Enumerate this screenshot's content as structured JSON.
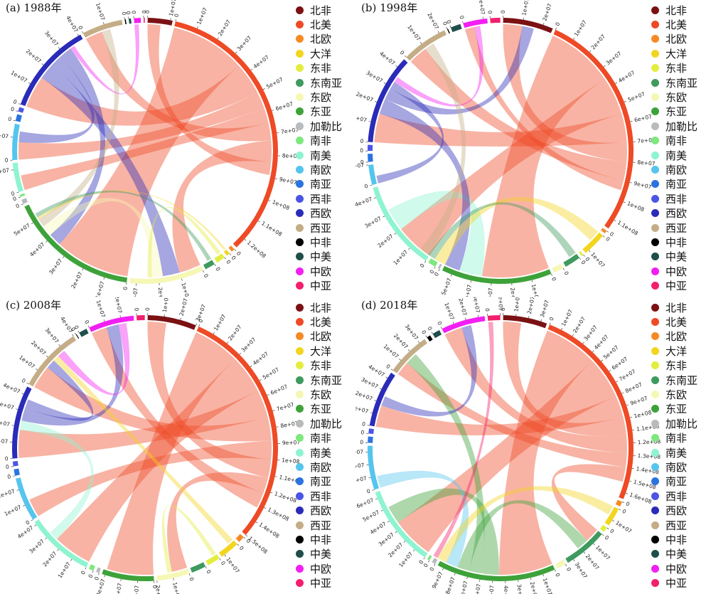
{
  "regions": [
    {
      "name": "北非",
      "color": "#7b1113"
    },
    {
      "name": "北美",
      "color": "#ee4a26"
    },
    {
      "name": "北欧",
      "color": "#f58a25"
    },
    {
      "name": "大洋",
      "color": "#f2d51f"
    },
    {
      "name": "东非",
      "color": "#e3ed3e"
    },
    {
      "name": "东南亚",
      "color": "#3e9a5e"
    },
    {
      "name": "东欧",
      "color": "#f5f7b4"
    },
    {
      "name": "东亚",
      "color": "#3ea23a"
    },
    {
      "name": "加勒比",
      "color": "#b7bbbd"
    },
    {
      "name": "南非",
      "color": "#7de87d"
    },
    {
      "name": "南美",
      "color": "#8ef4d0"
    },
    {
      "name": "南欧",
      "color": "#55c5ee"
    },
    {
      "name": "南亚",
      "color": "#2a73e0"
    },
    {
      "name": "西非",
      "color": "#4b55e4"
    },
    {
      "name": "西欧",
      "color": "#2a2bb8"
    },
    {
      "name": "西亚",
      "color": "#c4ad86"
    },
    {
      "name": "中非",
      "color": "#000000"
    },
    {
      "name": "中美",
      "color": "#1f4f4a"
    },
    {
      "name": "中欧",
      "color": "#f21ff2"
    },
    {
      "name": "中亚",
      "color": "#f21f6e"
    }
  ],
  "chart_data": [
    {
      "type": "chord",
      "title": "(a) 1988年",
      "sectors": [
        {
          "region": "北非",
          "total": 11000000.0
        },
        {
          "region": "北美",
          "total": 125000000.0
        },
        {
          "region": "北欧",
          "total": 1500000.0
        },
        {
          "region": "大洋",
          "total": 1500000.0
        },
        {
          "region": "东非",
          "total": 4000000.0
        },
        {
          "region": "东南亚",
          "total": 4500000.0
        },
        {
          "region": "东欧",
          "total": 33000000.0
        },
        {
          "region": "东亚",
          "total": 58000000.0
        },
        {
          "region": "加勒比",
          "total": 2000000.0
        },
        {
          "region": "南非",
          "total": 1000000.0
        },
        {
          "region": "南美",
          "total": 13000000.0
        },
        {
          "region": "南欧",
          "total": 16000000.0
        },
        {
          "region": "南亚",
          "total": 3000000.0
        },
        {
          "region": "西非",
          "total": 2000000.0
        },
        {
          "region": "西欧",
          "total": 41000000.0
        },
        {
          "region": "西亚",
          "total": 18000000.0
        },
        {
          "region": "中非",
          "total": 500000.0
        },
        {
          "region": "中美",
          "total": 1000000.0
        },
        {
          "region": "中欧",
          "total": 3000000.0
        },
        {
          "region": "中亚",
          "total": 500000.0
        }
      ],
      "flows": [
        {
          "from": "北美",
          "to": "东亚",
          "value": 35000000.0
        },
        {
          "from": "北美",
          "to": "西欧",
          "value": 15000000.0
        },
        {
          "from": "北美",
          "to": "南欧",
          "value": 8000000.0
        },
        {
          "from": "北美",
          "to": "南美",
          "value": 7000000.0
        },
        {
          "from": "北美",
          "to": "西亚",
          "value": 8000000.0
        },
        {
          "from": "北美",
          "to": "东欧",
          "value": 10000000.0
        },
        {
          "from": "北美",
          "to": "北非",
          "value": 6000000.0
        },
        {
          "from": "西欧",
          "to": "东欧",
          "value": 8000000.0
        },
        {
          "from": "西欧",
          "to": "南欧",
          "value": 5000000.0
        },
        {
          "from": "西欧",
          "to": "东亚",
          "value": 6000000.0
        },
        {
          "from": "东欧",
          "to": "东亚",
          "value": 5000000.0
        },
        {
          "from": "西亚",
          "to": "东亚",
          "value": 4000000.0
        },
        {
          "from": "大洋",
          "to": "东亚",
          "value": 1000000.0
        },
        {
          "from": "东南亚",
          "to": "东亚",
          "value": 2000000.0
        },
        {
          "from": "中欧",
          "to": "西欧",
          "value": 2000000.0
        },
        {
          "from": "东非",
          "to": "东欧",
          "value": 2000000.0
        }
      ]
    },
    {
      "type": "chord",
      "title": "(b) 1998年",
      "sectors": [
        {
          "region": "北非",
          "total": 25000000.0
        },
        {
          "region": "北美",
          "total": 115000000.0
        },
        {
          "region": "北欧",
          "total": 1500000.0
        },
        {
          "region": "大洋",
          "total": 12000000.0
        },
        {
          "region": "东非",
          "total": 1000000.0
        },
        {
          "region": "东南亚",
          "total": 8000000.0
        },
        {
          "region": "东欧",
          "total": 5000000.0
        },
        {
          "region": "东亚",
          "total": 55000000.0
        },
        {
          "region": "加勒比",
          "total": 1000000.0
        },
        {
          "region": "南非",
          "total": 4000000.0
        },
        {
          "region": "南美",
          "total": 45000000.0
        },
        {
          "region": "南欧",
          "total": 10000000.0
        },
        {
          "region": "南亚",
          "total": 4000000.0
        },
        {
          "region": "西非",
          "total": 3000000.0
        },
        {
          "region": "西欧",
          "total": 45000000.0
        },
        {
          "region": "西亚",
          "total": 23000000.0
        },
        {
          "region": "中非",
          "total": 500000.0
        },
        {
          "region": "中美",
          "total": 5000000.0
        },
        {
          "region": "中欧",
          "total": 12000000.0
        },
        {
          "region": "中亚",
          "total": 5000000.0
        }
      ],
      "flows": [
        {
          "from": "北美",
          "to": "东亚",
          "value": 35000000.0
        },
        {
          "from": "北美",
          "to": "南美",
          "value": 20000000.0
        },
        {
          "from": "北美",
          "to": "西欧",
          "value": 15000000.0
        },
        {
          "from": "北美",
          "to": "北非",
          "value": 10000000.0
        },
        {
          "from": "北美",
          "to": "西亚",
          "value": 10000000.0
        },
        {
          "from": "北美",
          "to": "中欧",
          "value": 5000000.0
        },
        {
          "from": "南美",
          "to": "东亚",
          "value": 12000000.0
        },
        {
          "from": "西欧",
          "to": "东亚",
          "value": 8000000.0
        },
        {
          "from": "西欧",
          "to": "北非",
          "value": 6000000.0
        },
        {
          "from": "西欧",
          "to": "南欧",
          "value": 4000000.0
        },
        {
          "from": "大洋",
          "to": "东亚",
          "value": 6000000.0
        },
        {
          "from": "东南亚",
          "to": "东亚",
          "value": 4000000.0
        },
        {
          "from": "中欧",
          "to": "西欧",
          "value": 3000000.0
        },
        {
          "from": "西亚",
          "to": "东亚",
          "value": 5000000.0
        }
      ]
    },
    {
      "type": "chord",
      "title": "(c) 2008年",
      "sectors": [
        {
          "region": "北非",
          "total": 30000000.0
        },
        {
          "region": "北美",
          "total": 150000000.0
        },
        {
          "region": "北欧",
          "total": 4000000.0
        },
        {
          "region": "大洋",
          "total": 12000000.0
        },
        {
          "region": "东非",
          "total": 8000000.0
        },
        {
          "region": "东南亚",
          "total": 9000000.0
        },
        {
          "region": "东欧",
          "total": 20000000.0
        },
        {
          "region": "东亚",
          "total": 32000000.0
        },
        {
          "region": "加勒比",
          "total": 2000000.0
        },
        {
          "region": "南非",
          "total": 3000000.0
        },
        {
          "region": "南美",
          "total": 42000000.0
        },
        {
          "region": "南欧",
          "total": 27000000.0
        },
        {
          "region": "南亚",
          "total": 4000000.0
        },
        {
          "region": "西非",
          "total": 3000000.0
        },
        {
          "region": "西欧",
          "total": 45000000.0
        },
        {
          "region": "西亚",
          "total": 40000000.0
        },
        {
          "region": "中非",
          "total": 500000.0
        },
        {
          "region": "中美",
          "total": 5000000.0
        },
        {
          "region": "中欧",
          "total": 28000000.0
        },
        {
          "region": "中亚",
          "total": 5000000.0
        }
      ],
      "flows": [
        {
          "from": "北美",
          "to": "东亚",
          "value": 30000000.0
        },
        {
          "from": "北美",
          "to": "南美",
          "value": 25000000.0
        },
        {
          "from": "北美",
          "to": "西欧",
          "value": 18000000.0
        },
        {
          "from": "北美",
          "to": "西亚",
          "value": 15000000.0
        },
        {
          "from": "北美",
          "to": "南欧",
          "value": 12000000.0
        },
        {
          "from": "北美",
          "to": "北非",
          "value": 12000000.0
        },
        {
          "from": "北美",
          "to": "东欧",
          "value": 10000000.0
        },
        {
          "from": "北美",
          "to": "中欧",
          "value": 10000000.0
        },
        {
          "from": "南美",
          "to": "西欧",
          "value": 6000000.0
        },
        {
          "from": "西欧",
          "to": "中欧",
          "value": 8000000.0
        },
        {
          "from": "西欧",
          "to": "西亚",
          "value": 6000000.0
        },
        {
          "from": "大洋",
          "to": "西亚",
          "value": 4000000.0
        },
        {
          "from": "东非",
          "to": "东欧",
          "value": 3000000.0
        },
        {
          "from": "中欧",
          "to": "西亚",
          "value": 5000000.0
        }
      ]
    },
    {
      "type": "chord",
      "title": "(d) 2018年",
      "sectors": [
        {
          "region": "北非",
          "total": 35000000.0
        },
        {
          "region": "北美",
          "total": 165000000.0
        },
        {
          "region": "北欧",
          "total": 4000000.0
        },
        {
          "region": "大洋",
          "total": 15000000.0
        },
        {
          "region": "东非",
          "total": 4000000.0
        },
        {
          "region": "东南亚",
          "total": 35000000.0
        },
        {
          "region": "东欧",
          "total": 7000000.0
        },
        {
          "region": "东亚",
          "total": 95000000.0
        },
        {
          "region": "加勒比",
          "total": 3000000.0
        },
        {
          "region": "南非",
          "total": 2000000.0
        },
        {
          "region": "南美",
          "total": 65000000.0
        },
        {
          "region": "南欧",
          "total": 35000000.0
        },
        {
          "region": "南亚",
          "total": 5000000.0
        },
        {
          "region": "西非",
          "total": 4000000.0
        },
        {
          "region": "西欧",
          "total": 45000000.0
        },
        {
          "region": "西亚",
          "total": 35000000.0
        },
        {
          "region": "中非",
          "total": 3000000.0
        },
        {
          "region": "中美",
          "total": 6000000.0
        },
        {
          "region": "中欧",
          "total": 35000000.0
        },
        {
          "region": "中亚",
          "total": 10000000.0
        }
      ],
      "flows": [
        {
          "from": "北美",
          "to": "东亚",
          "value": 45000000.0
        },
        {
          "from": "北美",
          "to": "南美",
          "value": 35000000.0
        },
        {
          "from": "北美",
          "to": "西欧",
          "value": 18000000.0
        },
        {
          "from": "北美",
          "to": "北非",
          "value": 15000000.0
        },
        {
          "from": "北美",
          "to": "中欧",
          "value": 15000000.0
        },
        {
          "from": "北美",
          "to": "西亚",
          "value": 12000000.0
        },
        {
          "from": "北美",
          "to": "东南亚",
          "value": 12000000.0
        },
        {
          "from": "东亚",
          "to": "南美",
          "value": 15000000.0
        },
        {
          "from": "东亚",
          "to": "西亚",
          "value": 10000000.0
        },
        {
          "from": "东亚",
          "to": "东南亚",
          "value": 10000000.0
        },
        {
          "from": "南欧",
          "to": "东亚",
          "value": 10000000.0
        },
        {
          "from": "西欧",
          "to": "中欧",
          "value": 8000000.0
        },
        {
          "from": "大洋",
          "to": "东亚",
          "value": 8000000.0
        },
        {
          "from": "中亚",
          "to": "东亚",
          "value": 4000000.0
        }
      ]
    }
  ]
}
